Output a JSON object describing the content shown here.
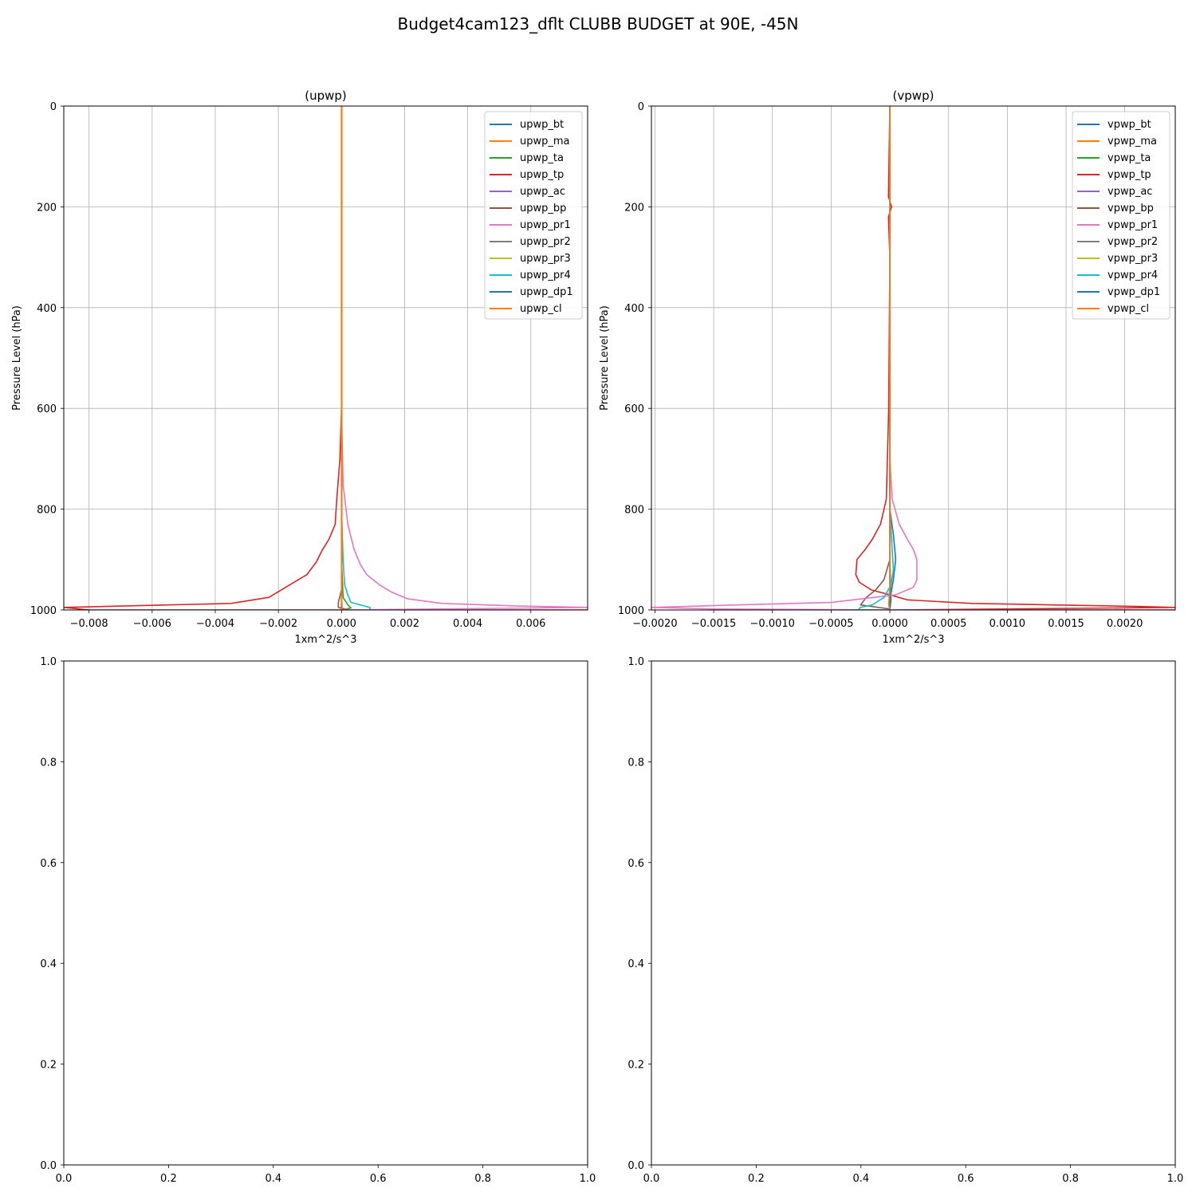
{
  "figure_title": "Budget4cam123_dflt CLUBB BUDGET at 90E, -45N",
  "colors": {
    "bt": "#1f77b4",
    "ma": "#ff7f0e",
    "ta": "#2ca02c",
    "tp": "#d62728",
    "ac": "#9467bd",
    "bp": "#8c564b",
    "pr1": "#e377c2",
    "pr2": "#7f7f7f",
    "pr3": "#bcbd22",
    "pr4": "#17becf",
    "dp1": "#1f77b4",
    "cl": "#ff7f0e",
    "grid": "#b0b0b0"
  },
  "chart_data": [
    {
      "type": "line",
      "title": "(upwp)",
      "xlabel": "1xm^2/s^3",
      "ylabel": "Pressure Level (hPa)",
      "xlim": [
        -0.0088,
        0.0078
      ],
      "ylim": [
        1000,
        0
      ],
      "y_inverted": true,
      "grid": true,
      "legend_position": "top-right",
      "xticks": [
        -0.008,
        -0.006,
        -0.004,
        -0.002,
        0.0,
        0.002,
        0.004,
        0.006
      ],
      "xtick_labels": [
        "−0.008",
        "−0.006",
        "−0.004",
        "−0.002",
        "0.000",
        "0.002",
        "0.004",
        "0.006"
      ],
      "yticks": [
        0,
        200,
        400,
        600,
        800,
        1000
      ],
      "ytick_labels": [
        "0",
        "200",
        "400",
        "600",
        "800",
        "1000"
      ],
      "series": [
        {
          "name": "upwp_bt",
          "color": "#1f77b4",
          "x": [
            0,
            0,
            0
          ],
          "y": [
            0,
            990,
            1000
          ]
        },
        {
          "name": "upwp_ma",
          "color": "#ff7f0e",
          "x": [
            0,
            0,
            0
          ],
          "y": [
            0,
            990,
            1000
          ]
        },
        {
          "name": "upwp_ta",
          "color": "#2ca02c",
          "x": [
            0,
            0,
            5e-05,
            0.0002,
            0.0003,
            0.0001,
            0
          ],
          "y": [
            0,
            900,
            975,
            990,
            996,
            999,
            1000
          ]
        },
        {
          "name": "upwp_tp",
          "color": "#d62728",
          "x": [
            0,
            0,
            -5e-05,
            -0.00015,
            -0.0002,
            -0.0004,
            -0.0006,
            -0.0008,
            -0.0011,
            -0.0015,
            -0.0019,
            -0.0023,
            -0.0035,
            -0.0055,
            -0.0088,
            -0.008,
            0.0078
          ],
          "y": [
            0,
            600,
            700,
            780,
            830,
            860,
            880,
            905,
            930,
            945,
            960,
            975,
            987,
            990,
            995,
            1000,
            1000
          ]
        },
        {
          "name": "upwp_ac",
          "color": "#9467bd",
          "x": [
            0,
            0,
            0
          ],
          "y": [
            0,
            990,
            1000
          ]
        },
        {
          "name": "upwp_bp",
          "color": "#8c564b",
          "x": [
            0,
            0,
            -0.0001,
            -0.0001,
            0.0001,
            0
          ],
          "y": [
            0,
            960,
            985,
            995,
            998,
            1000
          ]
        },
        {
          "name": "upwp_pr1",
          "color": "#e377c2",
          "x": [
            0,
            0,
            5e-05,
            0.0002,
            0.0004,
            0.0006,
            0.0008,
            0.0012,
            0.0016,
            0.0021,
            0.0032,
            0.0055,
            0.0078,
            0.0,
            0.0078
          ],
          "y": [
            0,
            600,
            750,
            830,
            880,
            910,
            930,
            950,
            965,
            978,
            987,
            992,
            995,
            1000,
            1000
          ]
        },
        {
          "name": "upwp_pr2",
          "color": "#7f7f7f",
          "x": [
            0,
            0,
            0
          ],
          "y": [
            0,
            990,
            1000
          ]
        },
        {
          "name": "upwp_pr3",
          "color": "#bcbd22",
          "x": [
            0,
            0,
            0
          ],
          "y": [
            0,
            990,
            1000
          ]
        },
        {
          "name": "upwp_pr4",
          "color": "#17becf",
          "x": [
            0,
            0,
            5e-05,
            0.0001,
            0.0002,
            0.0003,
            0.0006,
            0.0009,
            0.0009
          ],
          "y": [
            0,
            800,
            900,
            950,
            970,
            985,
            990,
            995,
            1000
          ]
        },
        {
          "name": "upwp_dp1",
          "color": "#1f77b4",
          "x": [
            0,
            0,
            0
          ],
          "y": [
            0,
            990,
            1000
          ]
        },
        {
          "name": "upwp_cl",
          "color": "#ff7f0e",
          "x": [
            0,
            0,
            2e-05,
            0
          ],
          "y": [
            0,
            970,
            995,
            1000
          ]
        }
      ]
    },
    {
      "type": "line",
      "title": "(vpwp)",
      "xlabel": "1xm^2/s^3",
      "ylabel": "Pressure Level (hPa)",
      "xlim": [
        -0.00203,
        0.00243
      ],
      "ylim": [
        1000,
        0
      ],
      "y_inverted": true,
      "grid": true,
      "legend_position": "top-right",
      "xticks": [
        -0.002,
        -0.0015,
        -0.001,
        -0.0005,
        0.0,
        0.0005,
        0.001,
        0.0015,
        0.002
      ],
      "xtick_labels": [
        "−0.0020",
        "−0.0015",
        "−0.0010",
        "−0.0005",
        "0.0000",
        "0.0005",
        "0.0010",
        "0.0015",
        "0.0020"
      ],
      "yticks": [
        0,
        200,
        400,
        600,
        800,
        1000
      ],
      "ytick_labels": [
        "0",
        "200",
        "400",
        "600",
        "800",
        "1000"
      ],
      "series": [
        {
          "name": "vpwp_bt",
          "color": "#1f77b4",
          "x": [
            0,
            0,
            3e-05,
            5e-05,
            3e-05,
            0,
            0
          ],
          "y": [
            0,
            800,
            850,
            900,
            940,
            980,
            1000
          ]
        },
        {
          "name": "vpwp_ma",
          "color": "#ff7f0e",
          "x": [
            0,
            0,
            0
          ],
          "y": [
            0,
            990,
            1000
          ]
        },
        {
          "name": "vpwp_ta",
          "color": "#2ca02c",
          "x": [
            0,
            0,
            1e-05,
            0
          ],
          "y": [
            0,
            900,
            980,
            1000
          ]
        },
        {
          "name": "vpwp_tp",
          "color": "#d62728",
          "x": [
            0,
            -1.2e-05,
            1.5e-05,
            -1.2e-05,
            0,
            -1e-05,
            -3e-05,
            -8e-05,
            -0.00015,
            -0.00021,
            -0.00028,
            -0.00029,
            -0.00026,
            -0.00016,
            0.0,
            0.00015,
            0.0007,
            0.0014,
            0.0021,
            0.00243,
            0.0,
            0.00243
          ],
          "y": [
            0,
            180,
            200,
            220,
            300,
            600,
            780,
            830,
            860,
            880,
            900,
            930,
            945,
            960,
            970,
            980,
            987,
            990,
            993,
            995,
            1000,
            1000
          ]
        },
        {
          "name": "vpwp_ac",
          "color": "#9467bd",
          "x": [
            0,
            0,
            0
          ],
          "y": [
            0,
            990,
            1000
          ]
        },
        {
          "name": "vpwp_bp",
          "color": "#8c564b",
          "x": [
            0,
            0,
            -5e-05,
            -0.00012,
            -0.0002,
            -0.00025,
            0,
            0
          ],
          "y": [
            0,
            900,
            940,
            960,
            975,
            990,
            998,
            1000
          ]
        },
        {
          "name": "vpwp_pr1",
          "color": "#e377c2",
          "x": [
            0,
            0,
            2e-05,
            8e-05,
            0.00015,
            0.0002,
            0.00023,
            0.00023,
            0.0002,
            5e-05,
            -0.0005,
            -0.0013,
            -0.00203,
            -0.0015,
            0.0,
            0.00243
          ],
          "y": [
            0,
            700,
            780,
            830,
            860,
            880,
            900,
            940,
            955,
            970,
            985,
            990,
            995,
            998,
            1000,
            1000
          ]
        },
        {
          "name": "vpwp_pr2",
          "color": "#7f7f7f",
          "x": [
            0,
            0,
            0
          ],
          "y": [
            0,
            990,
            1000
          ]
        },
        {
          "name": "vpwp_pr3",
          "color": "#bcbd22",
          "x": [
            0,
            0,
            0
          ],
          "y": [
            0,
            990,
            1000
          ]
        },
        {
          "name": "vpwp_pr4",
          "color": "#17becf",
          "x": [
            0,
            0,
            2e-05,
            3e-05,
            1e-05,
            -5e-05,
            -0.00015,
            -0.00025,
            -0.00027,
            0.0
          ],
          "y": [
            0,
            800,
            880,
            920,
            950,
            975,
            990,
            995,
            1000,
            1000
          ]
        },
        {
          "name": "vpwp_dp1",
          "color": "#1f77b4",
          "x": [
            0,
            0,
            0
          ],
          "y": [
            0,
            990,
            1000
          ]
        },
        {
          "name": "vpwp_cl",
          "color": "#ff7f0e",
          "x": [
            0,
            0,
            -1e-05,
            0
          ],
          "y": [
            0,
            950,
            990,
            1000
          ]
        }
      ]
    },
    {
      "type": "line",
      "title": "",
      "xlim": [
        0,
        1
      ],
      "ylim": [
        0,
        1
      ],
      "xticks": [
        0.0,
        0.2,
        0.4,
        0.6,
        0.8,
        1.0
      ],
      "xtick_labels": [
        "0.0",
        "0.2",
        "0.4",
        "0.6",
        "0.8",
        "1.0"
      ],
      "yticks": [
        0.0,
        0.2,
        0.4,
        0.6,
        0.8,
        1.0
      ],
      "ytick_labels": [
        "0.0",
        "0.2",
        "0.4",
        "0.6",
        "0.8",
        "1.0"
      ],
      "series": []
    },
    {
      "type": "line",
      "title": "",
      "xlim": [
        0,
        1
      ],
      "ylim": [
        0,
        1
      ],
      "xticks": [
        0.0,
        0.2,
        0.4,
        0.6,
        0.8,
        1.0
      ],
      "xtick_labels": [
        "0.0",
        "0.2",
        "0.4",
        "0.6",
        "0.8",
        "1.0"
      ],
      "yticks": [
        0.0,
        0.2,
        0.4,
        0.6,
        0.8,
        1.0
      ],
      "ytick_labels": [
        "0.0",
        "0.2",
        "0.4",
        "0.6",
        "0.8",
        "1.0"
      ],
      "series": []
    }
  ]
}
